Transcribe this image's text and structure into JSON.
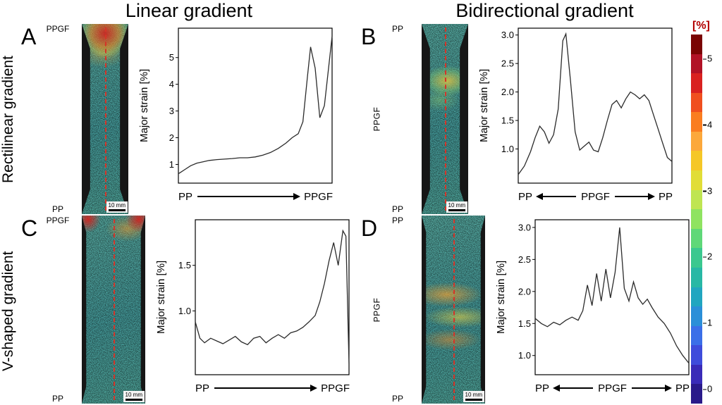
{
  "titles": {
    "left": "Linear gradient",
    "right": "Bidirectional gradient"
  },
  "row_labels": {
    "top": "Rectilinear gradient",
    "bottom": "V-shaped gradient"
  },
  "colorbar": {
    "label": "[%]",
    "ticks": [
      "5",
      "4",
      "3",
      "2",
      "1",
      "0"
    ],
    "colors": [
      "#7a0403",
      "#b11226",
      "#d92120",
      "#f04f1f",
      "#fa7d20",
      "#fca83b",
      "#f5c727",
      "#e1dd37",
      "#bfe552",
      "#8fe361",
      "#5fd878",
      "#3bc88f",
      "#28b8a5",
      "#21a6c0",
      "#2b8fd8",
      "#3b6fe8",
      "#3f4cdb",
      "#3a2bb8",
      "#2a1a8a"
    ]
  },
  "panels": [
    {
      "letter": "A",
      "bar": {
        "top": "PPGF",
        "bottom": "PP",
        "side": "",
        "segments": [
          "#0e5fa0",
          "#2679b8",
          "#4a97cc",
          "#7cb6de",
          "#a6cfea",
          "#d0e6f5"
        ]
      },
      "specimen": {
        "scale": "10 mm"
      }
    },
    {
      "letter": "B",
      "bar": {
        "top": "PP",
        "bottom": "PP",
        "side": "PPGF",
        "segments": [
          "#9cc6e6",
          "#4a97cc",
          "#0e5fa0",
          "#2679b8",
          "#4a97cc",
          "#a6cfea",
          "#d0e6f5"
        ]
      },
      "specimen": {
        "scale": "10 mm"
      }
    },
    {
      "letter": "C",
      "bar": {
        "top": "PPGF",
        "bottom": "PP",
        "side": "",
        "segments": [
          "#0e5fa0",
          "#2679b8",
          "#4a97cc",
          "#7cb6de",
          "#a6cfea",
          "#d0e6f5"
        ]
      },
      "specimen": {
        "scale": "10 mm"
      }
    },
    {
      "letter": "D",
      "bar": {
        "top": "PP",
        "bottom": "PP",
        "side": "PPGF",
        "segments": [
          "#9cc6e6",
          "#4a97cc",
          "#2679b8",
          "#0e5fa0",
          "#2679b8",
          "#7cb6de",
          "#d0e6f5"
        ]
      },
      "specimen": {
        "scale": "10 mm"
      }
    }
  ],
  "chart_data": [
    {
      "type": "line",
      "title": "Panel A strain profile",
      "ylabel": "Major strain [%]",
      "ylim": [
        0.3,
        6.1
      ],
      "yticks": [
        "1",
        "2",
        "3",
        "4",
        "5"
      ],
      "grid": false,
      "legend": "none",
      "xaxis": {
        "mode": "right",
        "labels": [
          "PP",
          "PPGF"
        ]
      },
      "x": [
        0,
        0.04,
        0.08,
        0.12,
        0.16,
        0.2,
        0.25,
        0.3,
        0.35,
        0.4,
        0.45,
        0.5,
        0.55,
        0.6,
        0.65,
        0.7,
        0.74,
        0.78,
        0.81,
        0.84,
        0.86,
        0.89,
        0.92,
        0.95,
        1.0
      ],
      "values": [
        0.65,
        0.8,
        0.95,
        1.05,
        1.1,
        1.15,
        1.18,
        1.2,
        1.22,
        1.25,
        1.25,
        1.28,
        1.35,
        1.45,
        1.6,
        1.8,
        2.0,
        2.15,
        2.6,
        4.3,
        5.4,
        4.6,
        2.75,
        3.2,
        5.8
      ]
    },
    {
      "type": "line",
      "title": "Panel B strain profile",
      "ylabel": "Major strain [%]",
      "ylim": [
        0.4,
        3.12
      ],
      "yticks": [
        "1.0",
        "1.5",
        "2.0",
        "2.5",
        "3.0"
      ],
      "grid": false,
      "legend": "none",
      "xaxis": {
        "mode": "both",
        "labels": [
          "PP",
          "PPGF",
          "PP"
        ]
      },
      "x": [
        0,
        0.04,
        0.08,
        0.11,
        0.14,
        0.17,
        0.2,
        0.23,
        0.26,
        0.29,
        0.31,
        0.34,
        0.37,
        0.4,
        0.43,
        0.46,
        0.49,
        0.52,
        0.55,
        0.58,
        0.61,
        0.64,
        0.67,
        0.7,
        0.73,
        0.76,
        0.79,
        0.82,
        0.85,
        0.88,
        0.91,
        0.94,
        0.97,
        1.0
      ],
      "values": [
        0.55,
        0.7,
        0.95,
        1.2,
        1.4,
        1.3,
        1.1,
        1.25,
        1.7,
        2.9,
        3.02,
        2.2,
        1.3,
        0.98,
        1.05,
        1.12,
        0.98,
        0.95,
        1.2,
        1.5,
        1.78,
        1.85,
        1.72,
        1.88,
        2.0,
        1.95,
        1.88,
        1.95,
        1.85,
        1.6,
        1.35,
        1.1,
        0.85,
        0.78
      ]
    },
    {
      "type": "line",
      "title": "Panel C strain profile",
      "ylabel": "Major strain [%]",
      "ylim": [
        0.3,
        2.0
      ],
      "yticks": [
        "1.0",
        "1.5"
      ],
      "grid": false,
      "legend": "none",
      "xaxis": {
        "mode": "right",
        "labels": [
          "PP",
          "PPGF"
        ]
      },
      "x": [
        0,
        0.03,
        0.06,
        0.1,
        0.14,
        0.18,
        0.22,
        0.26,
        0.3,
        0.34,
        0.38,
        0.42,
        0.46,
        0.5,
        0.54,
        0.58,
        0.62,
        0.66,
        0.7,
        0.74,
        0.78,
        0.81,
        0.84,
        0.87,
        0.9,
        0.93,
        0.96,
        0.98,
        1.0
      ],
      "values": [
        0.88,
        0.7,
        0.65,
        0.7,
        0.67,
        0.64,
        0.68,
        0.72,
        0.66,
        0.63,
        0.7,
        0.72,
        0.65,
        0.7,
        0.74,
        0.7,
        0.76,
        0.78,
        0.82,
        0.88,
        0.95,
        1.1,
        1.3,
        1.55,
        1.75,
        1.5,
        1.88,
        1.82,
        0.42
      ]
    },
    {
      "type": "line",
      "title": "Panel D strain profile",
      "ylabel": "Major strain [%]",
      "ylim": [
        0.7,
        3.12
      ],
      "yticks": [
        "1.0",
        "1.5",
        "2.0",
        "2.5",
        "3.0"
      ],
      "grid": false,
      "legend": "none",
      "xaxis": {
        "mode": "both",
        "labels": [
          "PP",
          "PPGF",
          "PP"
        ]
      },
      "x": [
        0,
        0.04,
        0.08,
        0.12,
        0.16,
        0.2,
        0.24,
        0.28,
        0.31,
        0.34,
        0.37,
        0.4,
        0.43,
        0.46,
        0.49,
        0.52,
        0.55,
        0.58,
        0.61,
        0.64,
        0.67,
        0.7,
        0.73,
        0.76,
        0.8,
        0.84,
        0.88,
        0.92,
        0.96,
        1.0
      ],
      "values": [
        1.58,
        1.5,
        1.45,
        1.52,
        1.48,
        1.55,
        1.6,
        1.55,
        1.7,
        2.1,
        1.78,
        2.28,
        1.85,
        2.35,
        1.9,
        2.3,
        3.0,
        2.05,
        1.85,
        2.15,
        1.9,
        1.8,
        1.88,
        1.75,
        1.6,
        1.5,
        1.35,
        1.15,
        1.0,
        0.88
      ]
    }
  ]
}
